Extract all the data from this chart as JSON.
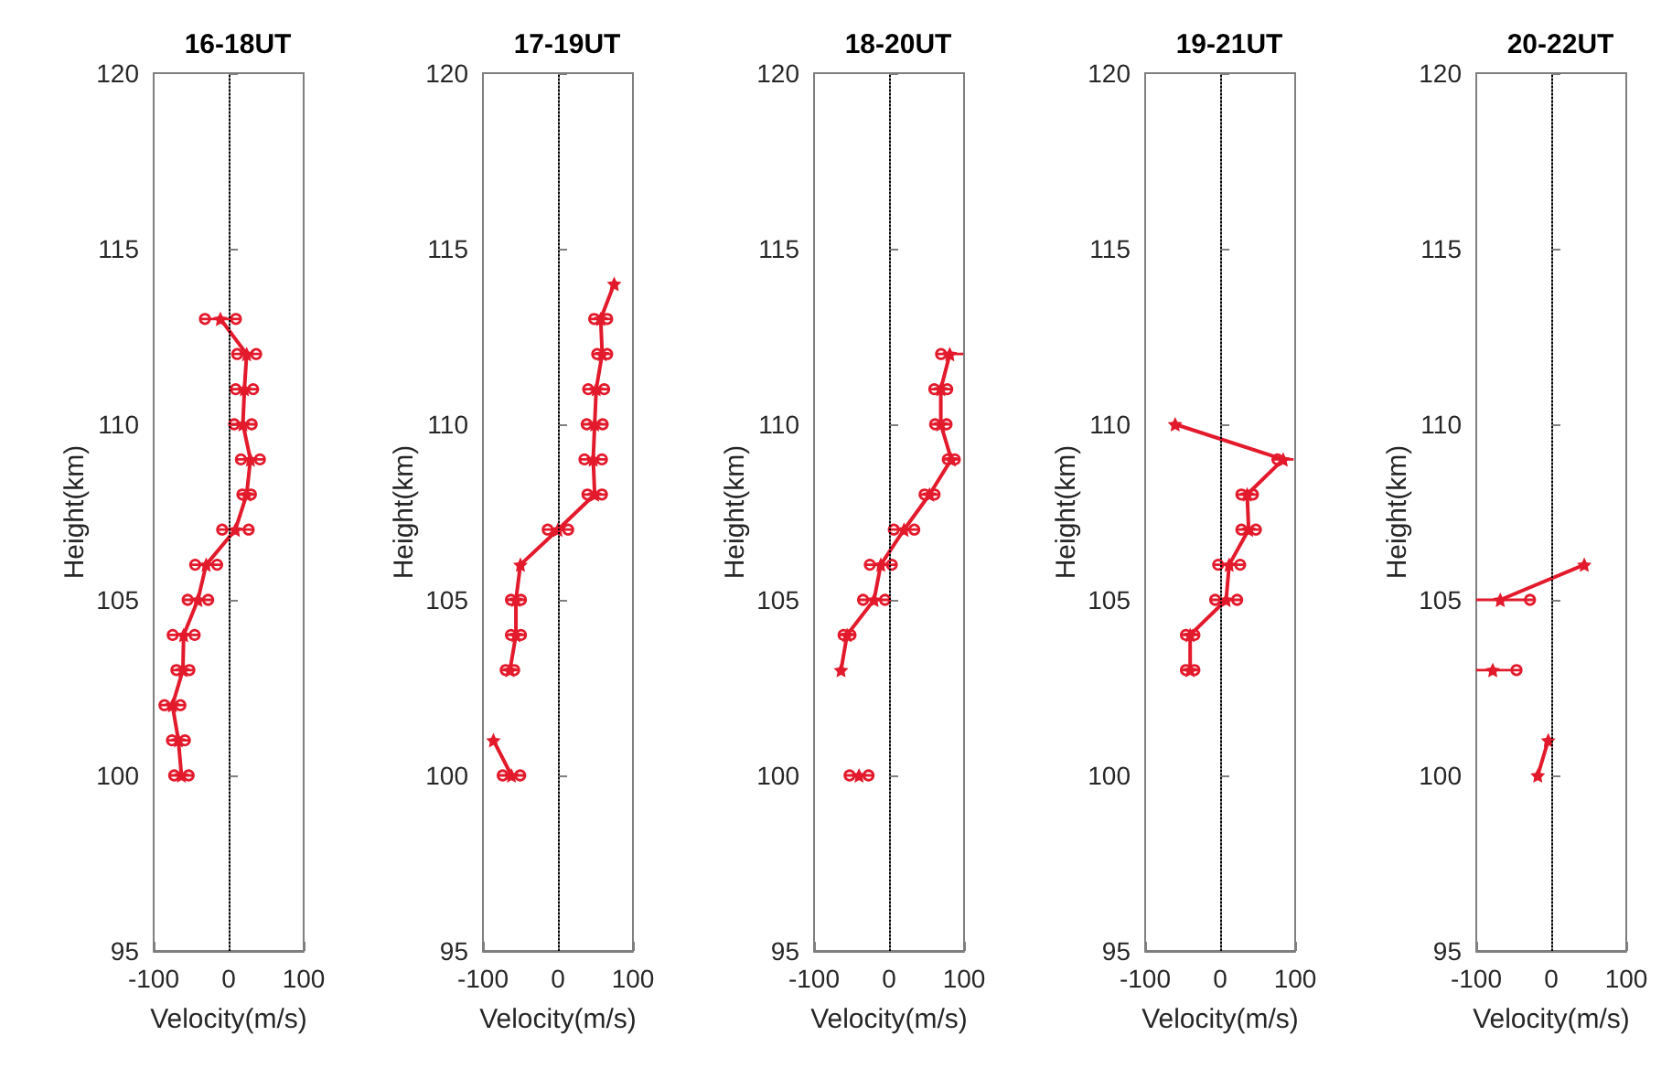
{
  "chart_data": [
    {
      "type": "line",
      "title": "16-18UT",
      "xlabel": "Velocity(m/s)",
      "ylabel": "Height(km)",
      "xlim": [
        -100,
        100
      ],
      "xticks": [
        -100,
        0,
        100
      ],
      "ylim": [
        95,
        120
      ],
      "yticks": [
        95,
        100,
        105,
        110,
        115,
        120
      ],
      "marker": "star",
      "line_style": "solid",
      "ref_lines": [
        {
          "axis": "x",
          "value": 0,
          "color": "#000000",
          "line_style": "dotted"
        }
      ],
      "series": [
        {
          "color": "#e31a2c",
          "values": [
            113,
            112,
            111,
            110,
            109,
            108,
            107,
            106,
            105,
            104,
            103,
            102,
            101,
            100
          ],
          "x": [
            -11,
            24,
            21,
            19,
            29,
            24,
            9,
            -30,
            -41,
            -60,
            -61,
            -75,
            -67,
            -63
          ],
          "xerrors": [
            27,
            19,
            18,
            18,
            19,
            12,
            24,
            21,
            20,
            21,
            15,
            17,
            15,
            16
          ]
        }
      ]
    },
    {
      "type": "line",
      "title": "17-19UT",
      "xlabel": "Velocity(m/s)",
      "ylabel": "Height(km)",
      "xlim": [
        -100,
        100
      ],
      "xticks": [
        -100,
        0,
        100
      ],
      "ylim": [
        95,
        120
      ],
      "yticks": [
        95,
        100,
        105,
        110,
        115,
        120
      ],
      "marker": "star",
      "line_style": "solid",
      "ref_lines": [
        {
          "axis": "x",
          "value": 0,
          "color": "#000000",
          "line_style": "dotted"
        }
      ],
      "series": [
        {
          "color": "#e31a2c",
          "values": [
            114,
            113,
            112,
            111,
            110,
            109,
            108,
            107,
            106,
            105,
            104,
            103,
            null,
            101,
            100
          ],
          "x": [
            75,
            57,
            59,
            51,
            49,
            47,
            49,
            0,
            -50,
            -56,
            -56,
            -64,
            null,
            -86,
            -62
          ],
          "xerrors": [
            null,
            15,
            13,
            17,
            17,
            18,
            16,
            20,
            null,
            13,
            13,
            12,
            null,
            null,
            18
          ]
        }
      ]
    },
    {
      "type": "line",
      "title": "18-20UT",
      "xlabel": "Velocity(m/s)",
      "ylabel": "Height(km)",
      "xlim": [
        -100,
        100
      ],
      "xticks": [
        -100,
        0,
        100
      ],
      "ylim": [
        95,
        120
      ],
      "yticks": [
        95,
        100,
        105,
        110,
        115,
        120
      ],
      "marker": "star",
      "line_style": "solid",
      "ref_lines": [
        {
          "axis": "x",
          "value": 0,
          "color": "#000000",
          "line_style": "dotted"
        }
      ],
      "series": [
        {
          "color": "#e31a2c",
          "values": [
            112,
            111,
            110,
            109,
            108,
            107,
            106,
            105,
            104,
            103,
            null,
            null,
            100
          ],
          "x": [
            81,
            69,
            69,
            83,
            54,
            20,
            -11,
            -20,
            -56,
            -64,
            null,
            null,
            -40
          ],
          "xerrors": [
            18,
            15,
            14,
            11,
            13,
            20,
            21,
            21,
            11,
            null,
            null,
            null,
            19
          ]
        }
      ]
    },
    {
      "type": "line",
      "title": "19-21UT",
      "xlabel": "Velocity(m/s)",
      "ylabel": "Height(km)",
      "xlim": [
        -100,
        100
      ],
      "xticks": [
        -100,
        0,
        100
      ],
      "ylim": [
        95,
        120
      ],
      "yticks": [
        95,
        100,
        105,
        110,
        115,
        120
      ],
      "marker": "star",
      "line_style": "solid",
      "ref_lines": [
        {
          "axis": "x",
          "value": 0,
          "color": "#000000",
          "line_style": "dotted"
        }
      ],
      "series": [
        {
          "color": "#e31a2c",
          "values": [
            110,
            109,
            108,
            107,
            106,
            105,
            104,
            103
          ],
          "x": [
            -60,
            84,
            36,
            38,
            12,
            8,
            -40,
            -40
          ],
          "xerrors": [
            null,
            14,
            14,
            16,
            21,
            21,
            12,
            12
          ]
        }
      ]
    },
    {
      "type": "line",
      "title": "20-22UT",
      "xlabel": "Velocity(m/s)",
      "ylabel": "Height(km)",
      "xlim": [
        -100,
        100
      ],
      "xticks": [
        -100,
        0,
        100
      ],
      "ylim": [
        95,
        120
      ],
      "yticks": [
        95,
        100,
        105,
        110,
        115,
        120
      ],
      "marker": "star",
      "line_style": "solid",
      "ref_lines": [
        {
          "axis": "x",
          "value": 0,
          "color": "#000000",
          "line_style": "dotted"
        }
      ],
      "series": [
        {
          "color": "#e31a2c",
          "values": [
            106,
            105,
            null,
            103,
            null,
            101,
            100
          ],
          "x": [
            44,
            -68,
            null,
            -78,
            null,
            -4,
            -18
          ],
          "xerrors": [
            null,
            [
              -100,
              -22
            ],
            null,
            [
              -100,
              -40
            ],
            null,
            null,
            null
          ]
        }
      ]
    }
  ]
}
